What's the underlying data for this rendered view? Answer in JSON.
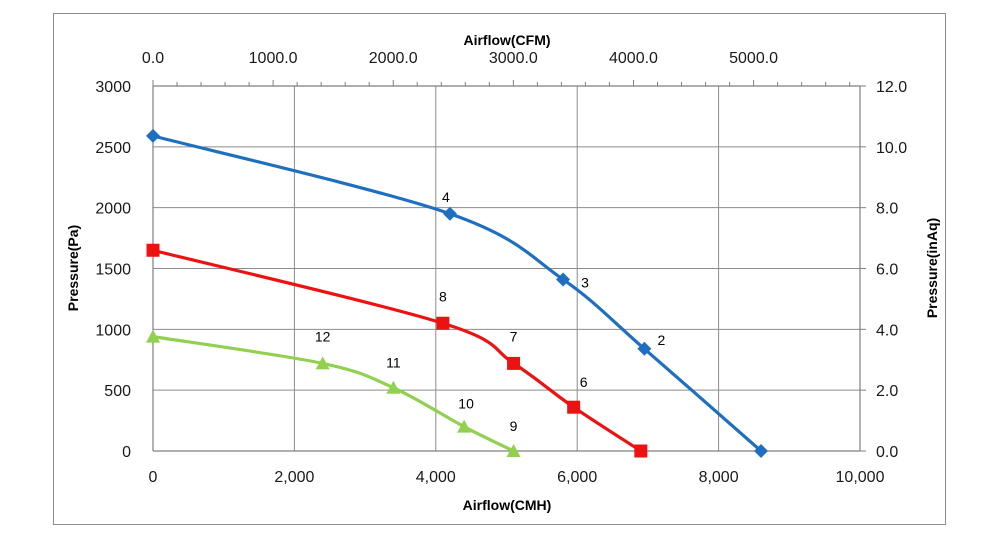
{
  "chart_data": {
    "type": "line",
    "xlabel_bottom": "Airflow(CMH)",
    "xlabel_top": "Airflow(CFM)",
    "ylabel_left": "Pressure(Pa)",
    "ylabel_right": "Pressure(inAq)",
    "xlim": [
      0,
      10000
    ],
    "ylim": [
      0,
      3000
    ],
    "x_ticks": [
      "0",
      "2,000",
      "4,000",
      "6,000",
      "8,000",
      "10,000"
    ],
    "y_ticks_left": [
      "0",
      "500",
      "1000",
      "1500",
      "2000",
      "2500",
      "3000"
    ],
    "x_ticks_top": [
      "0.0",
      "1000.0",
      "2000.0",
      "3000.0",
      "4000.0",
      "5000.0"
    ],
    "y_ticks_right": [
      "0.0",
      "2.0",
      "4.0",
      "6.0",
      "8.0",
      "10.0",
      "12.0"
    ],
    "grid": true,
    "series": [
      {
        "color": "#1f6fc0",
        "marker": "diamond",
        "points": [
          {
            "x": 0,
            "y": 2590,
            "label": ""
          },
          {
            "x": 4200,
            "y": 1950,
            "label": "4"
          },
          {
            "x": 5800,
            "y": 1410,
            "label": "3"
          },
          {
            "x": 6950,
            "y": 840,
            "label": "2"
          },
          {
            "x": 8600,
            "y": 0,
            "label": ""
          }
        ]
      },
      {
        "color": "#ee1111",
        "marker": "square",
        "points": [
          {
            "x": 0,
            "y": 1650,
            "label": ""
          },
          {
            "x": 4100,
            "y": 1050,
            "label": "8"
          },
          {
            "x": 5100,
            "y": 720,
            "label": "7"
          },
          {
            "x": 5950,
            "y": 360,
            "label": "6"
          },
          {
            "x": 6900,
            "y": 0,
            "label": ""
          }
        ]
      },
      {
        "color": "#92d050",
        "marker": "triangle",
        "points": [
          {
            "x": 0,
            "y": 940,
            "label": ""
          },
          {
            "x": 2400,
            "y": 720,
            "label": "12"
          },
          {
            "x": 3400,
            "y": 520,
            "label": "11"
          },
          {
            "x": 4400,
            "y": 200,
            "label": "10"
          },
          {
            "x": 5100,
            "y": 0,
            "label": "9"
          }
        ]
      }
    ]
  }
}
